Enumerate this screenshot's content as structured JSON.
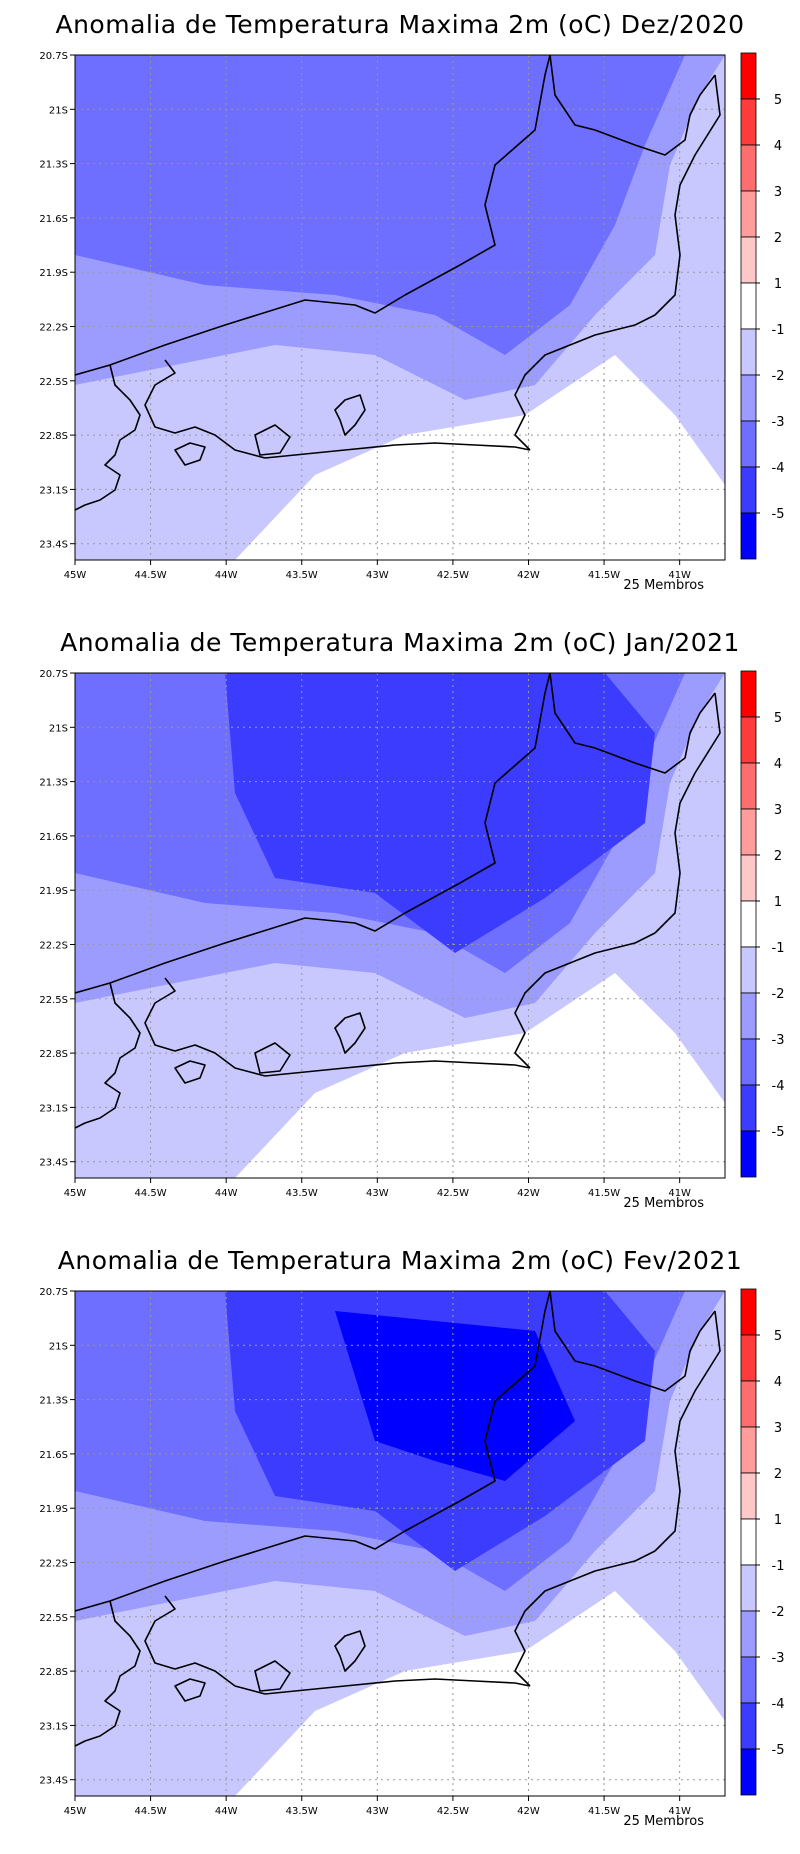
{
  "panels": [
    {
      "title": "Anomalia de Temperatura Maxima 2m (oC) Dez/2020",
      "members": "25 Membros",
      "max_cold_level": 3
    },
    {
      "title": "Anomalia de Temperatura Maxima 2m (oC) Jan/2021",
      "members": "25 Membros",
      "max_cold_level": 4
    },
    {
      "title": "Anomalia de Temperatura Maxima 2m (oC) Fev/2021",
      "members": "25 Membros",
      "max_cold_level": 5
    }
  ],
  "x_ticks": [
    "45W",
    "44.5W",
    "44W",
    "43.5W",
    "43W",
    "42.5W",
    "42W",
    "41.5W",
    "41W"
  ],
  "y_ticks": [
    "20.7S",
    "21S",
    "21.3S",
    "21.6S",
    "21.9S",
    "22.2S",
    "22.5S",
    "22.8S",
    "23.1S",
    "23.4S"
  ],
  "colorbar": {
    "labels": [
      "5",
      "4",
      "3",
      "2",
      "1",
      "-1",
      "-2",
      "-3",
      "-4",
      "-5"
    ],
    "colors": [
      "#ff0000",
      "#ff3c3c",
      "#ff6e6e",
      "#ff9c9c",
      "#ffc8c8",
      "#ffffff",
      "#c8c8ff",
      "#9c9cff",
      "#6e6eff",
      "#3c3cff",
      "#0000ff"
    ]
  }
}
